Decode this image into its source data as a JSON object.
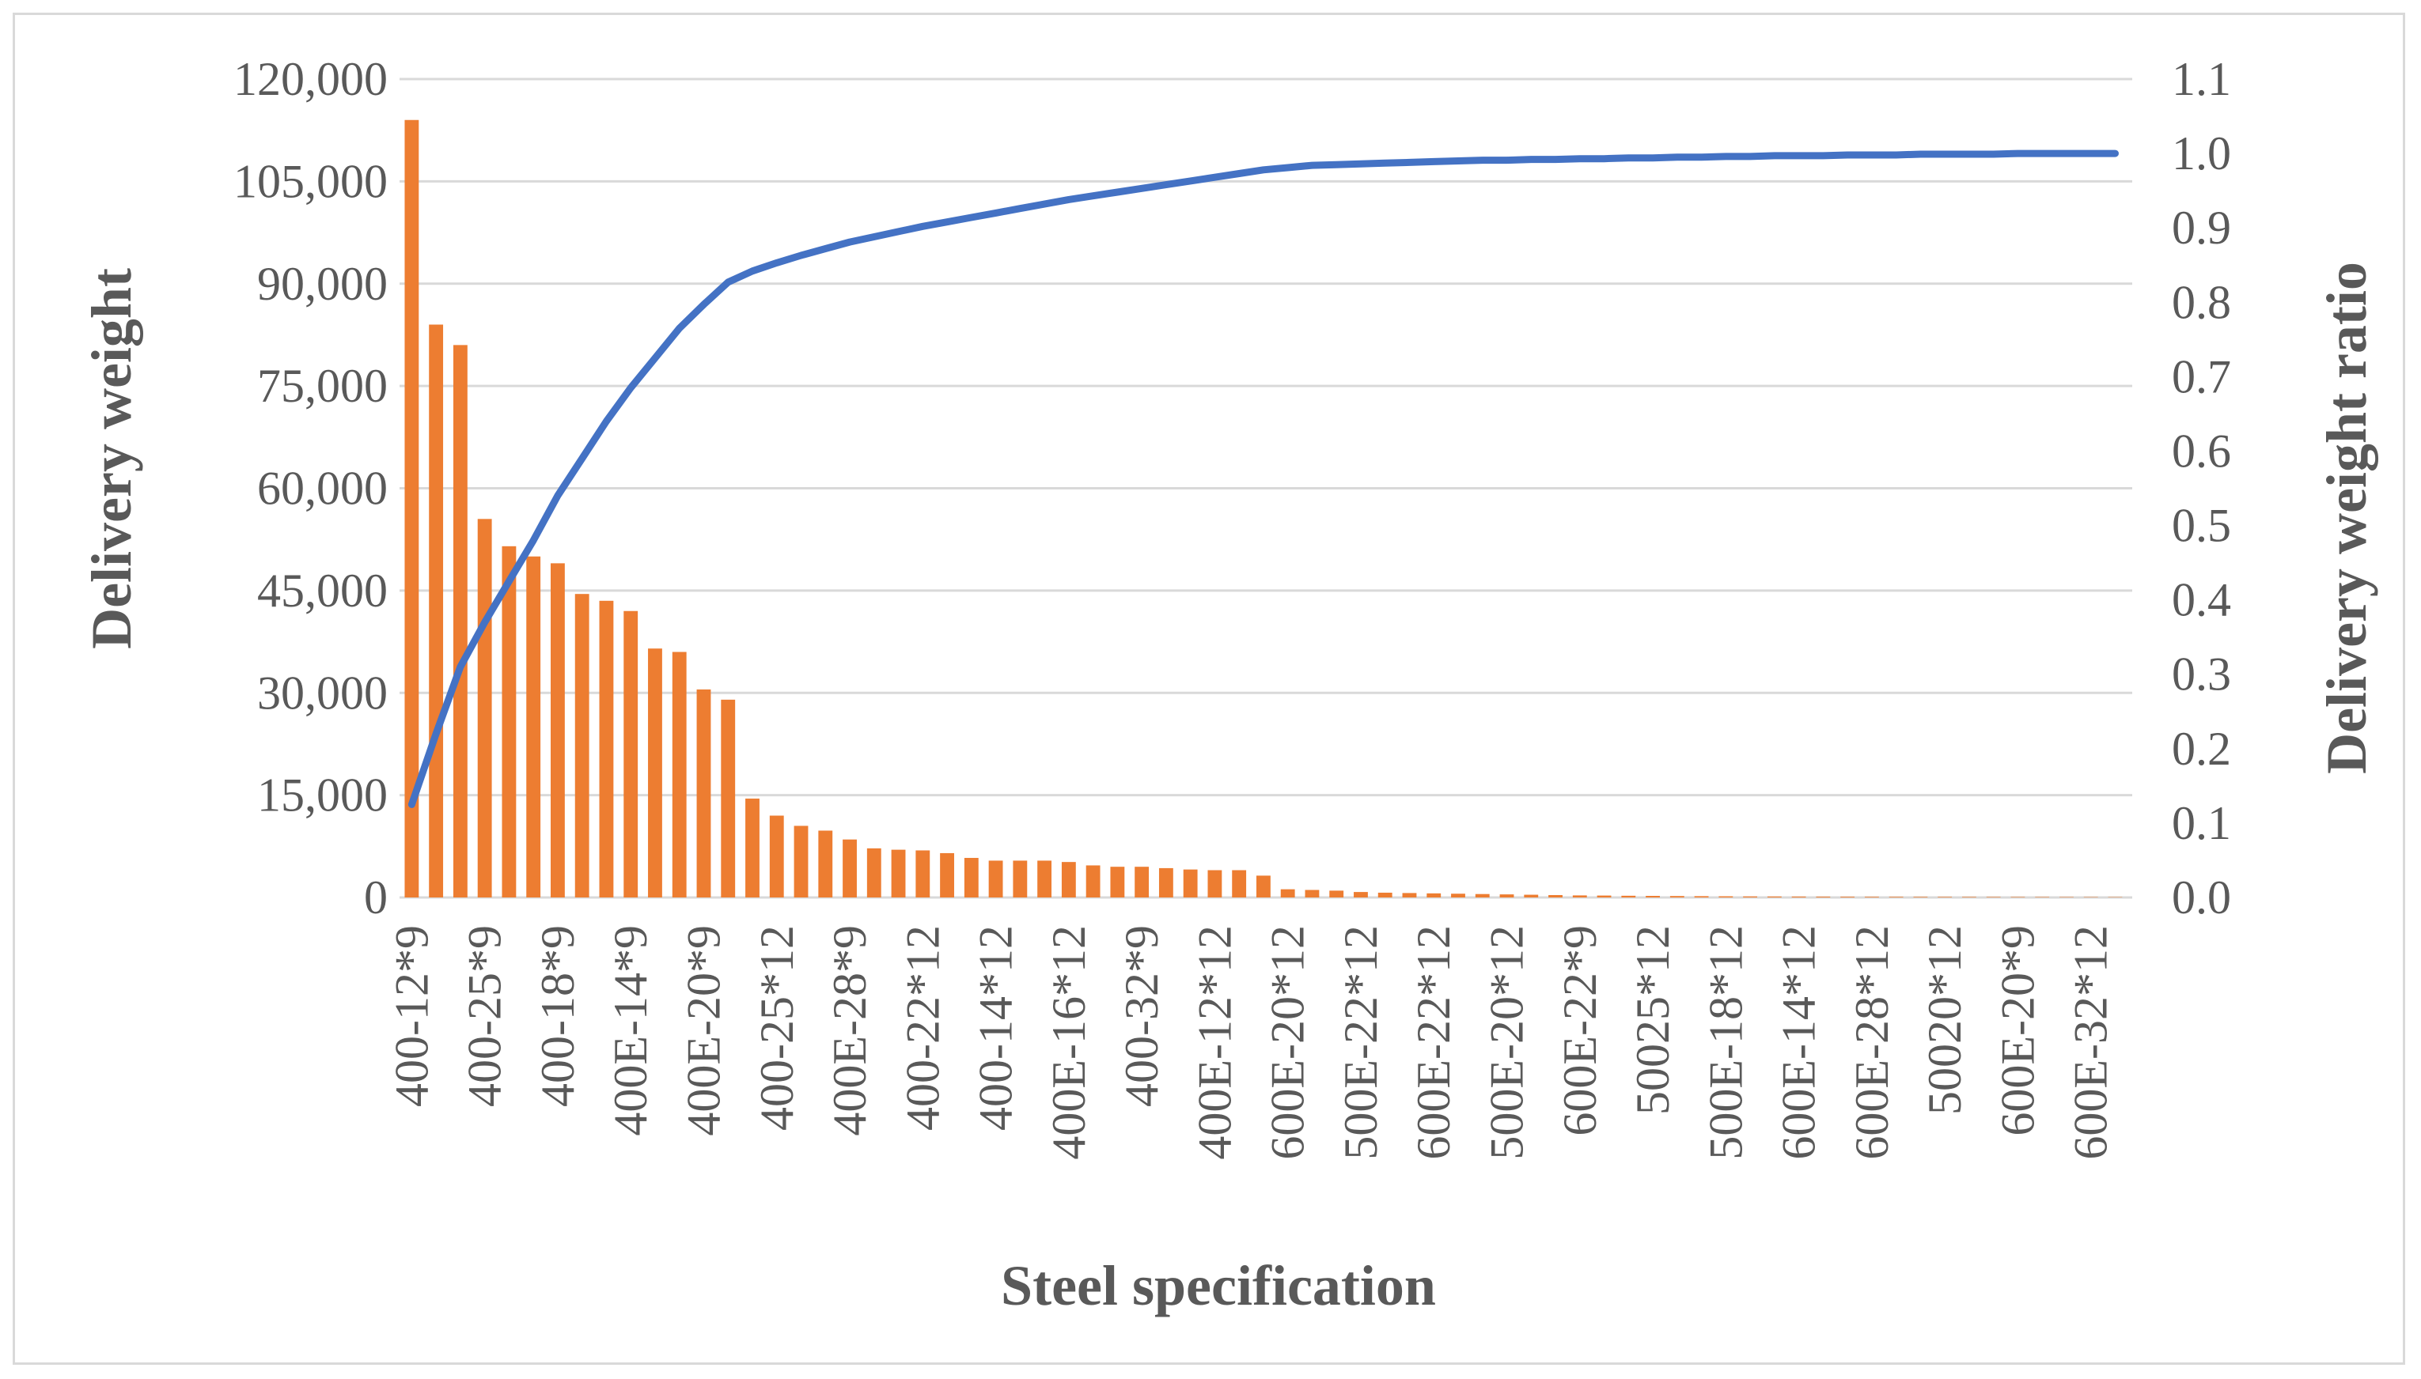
{
  "chart_data": {
    "type": "bar+line",
    "title": "",
    "xlabel": "Steel specification",
    "ylabel": "Delivery weight",
    "y2label": "Delivery weight ratio",
    "ylim": [
      0,
      120000
    ],
    "y2lim": [
      0,
      1.1
    ],
    "yticks": [
      "0",
      "15,000",
      "30,000",
      "45,000",
      "60,000",
      "75,000",
      "90,000",
      "105,000",
      "120,000"
    ],
    "y2ticks": [
      "0.0",
      "0.1",
      "0.2",
      "0.3",
      "0.4",
      "0.5",
      "0.6",
      "0.7",
      "0.8",
      "0.9",
      "1.0",
      "1.1"
    ],
    "xtick_labels": [
      "400-12*9",
      "400-25*9",
      "400-18*9",
      "400E-14*9",
      "400E-20*9",
      "400-25*12",
      "400E-28*9",
      "400-22*12",
      "400-14*12",
      "400E-16*12",
      "400-32*9",
      "400E-12*12",
      "600E-20*12",
      "500E-22*12",
      "600E-22*12",
      "500E-20*12",
      "600E-22*9",
      "50025*12",
      "500E-18*12",
      "600E-14*12",
      "600E-28*12",
      "50020*12",
      "600E-20*9",
      "600E-32*12"
    ],
    "xtick_every": 3,
    "grid": true,
    "series": [
      {
        "name": "Delivery weight",
        "type": "bar",
        "axis": "left",
        "color": "#ed7d31",
        "values": [
          114000,
          84000,
          81000,
          55500,
          51500,
          50000,
          49000,
          44500,
          43500,
          42000,
          36500,
          36000,
          30500,
          29000,
          14500,
          12000,
          10500,
          9800,
          8500,
          7200,
          7000,
          6900,
          6500,
          5800,
          5400,
          5400,
          5400,
          5200,
          4700,
          4500,
          4500,
          4300,
          4100,
          4000,
          4000,
          3200,
          1200,
          1100,
          1000,
          800,
          700,
          650,
          600,
          550,
          500,
          450,
          400,
          350,
          300,
          280,
          250,
          230,
          210,
          190,
          170,
          150,
          140,
          130,
          120,
          110,
          100,
          95,
          90,
          85,
          80,
          75,
          70,
          65,
          60,
          55,
          50
        ]
      },
      {
        "name": "Delivery weight ratio",
        "type": "line",
        "axis": "right",
        "color": "#4472c4",
        "values": [
          0.125,
          0.22,
          0.31,
          0.37,
          0.425,
          0.48,
          0.54,
          0.59,
          0.64,
          0.685,
          0.725,
          0.765,
          0.797,
          0.827,
          0.842,
          0.853,
          0.863,
          0.872,
          0.881,
          0.888,
          0.895,
          0.902,
          0.908,
          0.914,
          0.92,
          0.926,
          0.932,
          0.938,
          0.943,
          0.948,
          0.953,
          0.958,
          0.963,
          0.968,
          0.973,
          0.978,
          0.981,
          0.984,
          0.985,
          0.986,
          0.987,
          0.988,
          0.989,
          0.99,
          0.991,
          0.991,
          0.992,
          0.992,
          0.993,
          0.993,
          0.994,
          0.994,
          0.995,
          0.995,
          0.996,
          0.996,
          0.997,
          0.997,
          0.997,
          0.998,
          0.998,
          0.998,
          0.999,
          0.999,
          0.999,
          0.999,
          1.0,
          1.0,
          1.0,
          1.0,
          1.0
        ]
      }
    ]
  }
}
